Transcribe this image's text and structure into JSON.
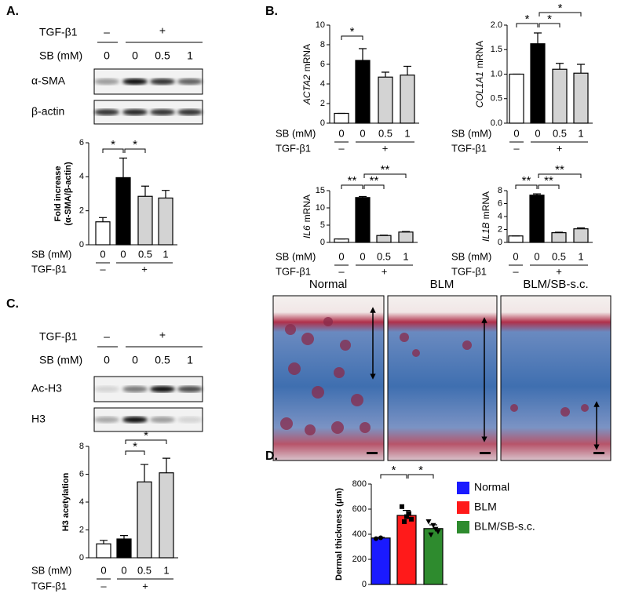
{
  "panel_labels": [
    "A.",
    "B.",
    "C.",
    "D."
  ],
  "blots": [
    {
      "tgf_label": "TGF-β1",
      "tgf": [
        "–",
        "+"
      ],
      "sb_label": "SB (mM)",
      "sb": [
        "0",
        "0",
        "0.5",
        "1"
      ],
      "bands": [
        "α-SMA",
        "β-actin"
      ]
    },
    {
      "tgf_label": "TGF-β1",
      "tgf": [
        "–",
        "+"
      ],
      "sb_label": "SB (mM)",
      "sb": [
        "0",
        "0",
        "0.5",
        "1"
      ],
      "bands": [
        "Ac-H3",
        "H3"
      ]
    }
  ],
  "histology": {
    "titles": [
      "Normal",
      "BLM",
      "BLM/SB-s.c."
    ]
  },
  "chart_data": [
    {
      "type": "bar",
      "ylabel": [
        "Fold increase",
        "(α-SMA/β-actin)"
      ],
      "sb_label": "SB (mM)",
      "categories": [
        "0",
        "0",
        "0.5",
        "1"
      ],
      "tgf_label": "TGF-β1",
      "tgf": [
        "–",
        "+"
      ],
      "values": [
        1.35,
        3.95,
        2.85,
        2.75
      ],
      "errors": [
        0.25,
        1.15,
        0.6,
        0.45
      ],
      "colors": [
        "#ffffff",
        "#000000",
        "#d3d3d3",
        "#d3d3d3"
      ],
      "ylim": [
        0,
        6
      ],
      "yticks": [
        0,
        2,
        4,
        6
      ],
      "significance": [
        {
          "pair": [
            0,
            1
          ],
          "label": "*"
        },
        {
          "pair": [
            1,
            2
          ],
          "label": "*"
        }
      ]
    },
    {
      "type": "bar",
      "gene": "ACTA2",
      "ylabel": "mRNA",
      "sb_label": "SB (mM)",
      "categories": [
        "0",
        "0",
        "0.5",
        "1"
      ],
      "tgf_label": "TGF-β1",
      "tgf": [
        "–",
        "+"
      ],
      "values": [
        1,
        6.4,
        4.7,
        4.9
      ],
      "errors": [
        0,
        1.2,
        0.5,
        0.9
      ],
      "colors": [
        "#ffffff",
        "#000000",
        "#d3d3d3",
        "#d3d3d3"
      ],
      "ylim": [
        0,
        10
      ],
      "yticks": [
        0,
        2,
        4,
        6,
        8,
        10
      ],
      "significance": [
        {
          "pair": [
            0,
            1
          ],
          "label": "*"
        }
      ]
    },
    {
      "type": "bar",
      "gene": "COL1A1",
      "ylabel": "mRNA",
      "sb_label": "SB (mM)",
      "categories": [
        "0",
        "0",
        "0.5",
        "1"
      ],
      "tgf_label": "TGF-β1",
      "tgf": [
        "–",
        "+"
      ],
      "values": [
        1,
        1.62,
        1.1,
        1.02
      ],
      "errors": [
        0,
        0.22,
        0.12,
        0.18
      ],
      "colors": [
        "#ffffff",
        "#000000",
        "#d3d3d3",
        "#d3d3d3"
      ],
      "ylim": [
        0,
        2
      ],
      "yticks": [
        {
          "value": 0,
          "label": "0.0"
        },
        {
          "value": 0.5,
          "label": "0.5"
        },
        {
          "value": 1,
          "label": "1.0"
        },
        {
          "value": 1.5,
          "label": "1.5"
        },
        {
          "value": 2,
          "label": "2.0"
        }
      ],
      "significance": [
        {
          "pair": [
            0,
            1
          ],
          "label": "*"
        },
        {
          "pair": [
            1,
            2
          ],
          "label": "*"
        },
        {
          "pair": [
            1,
            3
          ],
          "label": "*"
        }
      ]
    },
    {
      "type": "bar",
      "gene": "IL6",
      "ylabel": "mRNA",
      "sb_label": "SB (mM)",
      "categories": [
        "0",
        "0",
        "0.5",
        "1"
      ],
      "tgf_label": "TGF-β1",
      "tgf": [
        "–",
        "+"
      ],
      "values": [
        1,
        13,
        2,
        3
      ],
      "errors": [
        0,
        0.3,
        0.1,
        0.15
      ],
      "colors": [
        "#ffffff",
        "#000000",
        "#d3d3d3",
        "#d3d3d3"
      ],
      "ylim": [
        0,
        15
      ],
      "yticks": [
        0,
        5,
        10,
        15
      ],
      "significance": [
        {
          "pair": [
            0,
            1
          ],
          "label": "**"
        },
        {
          "pair": [
            1,
            2
          ],
          "label": "**"
        },
        {
          "pair": [
            1,
            3
          ],
          "label": "**"
        }
      ]
    },
    {
      "type": "bar",
      "gene": "IL1B",
      "ylabel": "mRNA",
      "sb_label": "SB (mM)",
      "categories": [
        "0",
        "0",
        "0.5",
        "1"
      ],
      "tgf_label": "TGF-β1",
      "tgf": [
        "–",
        "+"
      ],
      "values": [
        1,
        7.3,
        1.5,
        2.1
      ],
      "errors": [
        0,
        0.2,
        0.08,
        0.15
      ],
      "colors": [
        "#ffffff",
        "#000000",
        "#d3d3d3",
        "#d3d3d3"
      ],
      "ylim": [
        0,
        8
      ],
      "yticks": [
        0,
        2,
        4,
        6,
        8
      ],
      "significance": [
        {
          "pair": [
            0,
            1
          ],
          "label": "**"
        },
        {
          "pair": [
            1,
            2
          ],
          "label": "**"
        },
        {
          "pair": [
            1,
            3
          ],
          "label": "**"
        }
      ]
    },
    {
      "type": "bar",
      "ylabel": [
        "H3 acetylation"
      ],
      "sb_label": "SB (mM)",
      "categories": [
        "0",
        "0",
        "0.5",
        "1"
      ],
      "tgf_label": "TGF-β1",
      "tgf": [
        "–",
        "+"
      ],
      "values": [
        1,
        1.35,
        5.45,
        6.1
      ],
      "errors": [
        0.25,
        0.25,
        1.25,
        1.05
      ],
      "colors": [
        "#ffffff",
        "#000000",
        "#d3d3d3",
        "#d3d3d3"
      ],
      "ylim": [
        0,
        8
      ],
      "yticks": [
        0,
        2,
        4,
        6,
        8
      ],
      "significance": [
        {
          "pair": [
            1,
            2
          ],
          "label": "*"
        },
        {
          "pair": [
            1,
            3
          ],
          "label": "*"
        }
      ]
    },
    {
      "type": "bar",
      "ylabel": [
        "Dermal thickness (μm)"
      ],
      "ylim": [
        0,
        800
      ],
      "yticks": [
        0,
        200,
        400,
        600,
        800
      ],
      "series": [
        {
          "name": "Normal",
          "color": "#1a1aff",
          "values": [
            370
          ],
          "errors": [
            5
          ],
          "points": [
            365,
            372
          ]
        },
        {
          "name": "BLM",
          "color": "#ff1a1a",
          "values": [
            550
          ],
          "errors": [
            40
          ],
          "points": [
            620,
            540,
            520,
            500,
            565
          ]
        },
        {
          "name": "BLM/SB-s.c.",
          "color": "#2e8b2e",
          "values": [
            445
          ],
          "errors": [
            30
          ],
          "points": [
            500,
            470,
            420,
            395,
            440
          ]
        }
      ],
      "significance": [
        {
          "pair": [
            0,
            1
          ],
          "label": "*"
        },
        {
          "pair": [
            1,
            2
          ],
          "label": "*"
        }
      ]
    }
  ]
}
